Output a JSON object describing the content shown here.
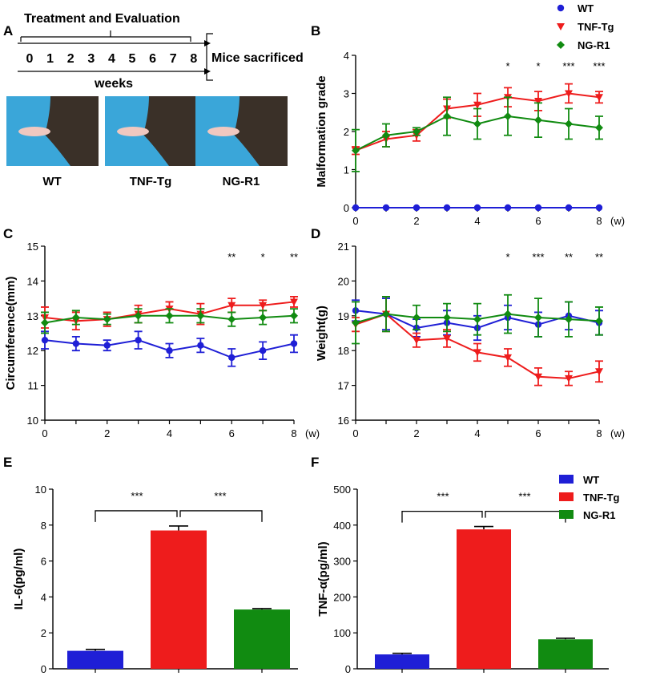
{
  "panel_labels": {
    "A": "A",
    "B": "B",
    "C": "C",
    "D": "D",
    "E": "E",
    "F": "F"
  },
  "colors": {
    "WT": "#1f1fd6",
    "TNF-Tg": "#ee1c1c",
    "NG-R1": "#118b11",
    "bg_photo": "#3aa6d9",
    "fur": "#3a3028",
    "paw": "#f0c8c0"
  },
  "timeline": {
    "title": "Treatment and Evaluation",
    "weeks": [
      "0",
      "1",
      "2",
      "3",
      "4",
      "5",
      "6",
      "7",
      "8"
    ],
    "weeks_label": "weeks",
    "end_label": "Mice sacrificed"
  },
  "photos": {
    "labels": [
      "WT",
      "TNF-Tg",
      "NG-R1"
    ]
  },
  "legend_top": [
    "WT",
    "TNF-Tg",
    "NG-R1"
  ],
  "legend_bottom": [
    "WT",
    "TNF-Tg",
    "NG-R1"
  ],
  "chart_data": [
    {
      "id": "B",
      "type": "line",
      "ylabel": "Malformation grade",
      "xunit": "(w)",
      "x": [
        0,
        1,
        2,
        3,
        4,
        5,
        6,
        7,
        8
      ],
      "xticks": [
        0,
        2,
        4,
        6,
        8
      ],
      "ylim": [
        0,
        4
      ],
      "yticks": [
        0,
        1,
        2,
        3,
        4
      ],
      "series": [
        {
          "name": "WT",
          "values": [
            0,
            0,
            0,
            0,
            0,
            0,
            0,
            0,
            0
          ],
          "err": [
            0,
            0,
            0,
            0,
            0,
            0,
            0,
            0,
            0
          ],
          "marker": "circle"
        },
        {
          "name": "TNF-Tg",
          "values": [
            1.5,
            1.8,
            1.9,
            2.6,
            2.7,
            2.9,
            2.8,
            3.0,
            2.9
          ],
          "err": [
            0.1,
            0.2,
            0.15,
            0.25,
            0.3,
            0.25,
            0.25,
            0.25,
            0.15
          ],
          "marker": "triangle"
        },
        {
          "name": "NG-R1",
          "values": [
            1.5,
            1.9,
            2.0,
            2.4,
            2.2,
            2.4,
            2.3,
            2.2,
            2.1
          ],
          "err": [
            0.55,
            0.3,
            0.1,
            0.5,
            0.4,
            0.5,
            0.45,
            0.4,
            0.3
          ],
          "marker": "diamond"
        }
      ],
      "annotations": [
        {
          "x": 5,
          "text": "*"
        },
        {
          "x": 6,
          "text": "*"
        },
        {
          "x": 7,
          "text": "***"
        },
        {
          "x": 8,
          "text": "***"
        }
      ]
    },
    {
      "id": "C",
      "type": "line",
      "ylabel": "Circumference(mm)",
      "xunit": "(w)",
      "x": [
        0,
        1,
        2,
        3,
        4,
        5,
        6,
        7,
        8
      ],
      "xticks": [
        0,
        2,
        4,
        6,
        8
      ],
      "ylim": [
        10,
        15
      ],
      "yticks": [
        10,
        11,
        12,
        13,
        14,
        15
      ],
      "series": [
        {
          "name": "WT",
          "values": [
            12.3,
            12.2,
            12.15,
            12.3,
            12.0,
            12.15,
            11.8,
            12.0,
            12.2
          ],
          "err": [
            0.25,
            0.2,
            0.15,
            0.25,
            0.2,
            0.2,
            0.25,
            0.25,
            0.25
          ],
          "marker": "circle"
        },
        {
          "name": "TNF-Tg",
          "values": [
            12.95,
            12.85,
            12.9,
            13.05,
            13.2,
            13.05,
            13.3,
            13.3,
            13.4
          ],
          "err": [
            0.3,
            0.25,
            0.2,
            0.25,
            0.2,
            0.3,
            0.2,
            0.15,
            0.15
          ],
          "marker": "triangle"
        },
        {
          "name": "NG-R1",
          "values": [
            12.8,
            12.95,
            12.9,
            13.0,
            13.0,
            13.0,
            12.9,
            12.95,
            13.0
          ],
          "err": [
            0.3,
            0.2,
            0.15,
            0.2,
            0.2,
            0.2,
            0.2,
            0.2,
            0.2
          ],
          "marker": "diamond"
        }
      ],
      "annotations": [
        {
          "x": 6,
          "text": "**"
        },
        {
          "x": 7,
          "text": "*"
        },
        {
          "x": 8,
          "text": "**"
        }
      ]
    },
    {
      "id": "D",
      "type": "line",
      "ylabel": "Weight(g)",
      "xunit": "(w)",
      "x": [
        0,
        1,
        2,
        3,
        4,
        5,
        6,
        7,
        8
      ],
      "xticks": [
        0,
        2,
        4,
        6,
        8
      ],
      "ylim": [
        16,
        21
      ],
      "yticks": [
        16,
        17,
        18,
        19,
        20,
        21
      ],
      "series": [
        {
          "name": "WT",
          "values": [
            19.15,
            19.05,
            18.65,
            18.8,
            18.65,
            18.95,
            18.75,
            19.0,
            18.8
          ],
          "err": [
            0.3,
            0.45,
            0.25,
            0.35,
            0.35,
            0.35,
            0.35,
            0.4,
            0.35
          ],
          "marker": "circle"
        },
        {
          "name": "TNF-Tg",
          "values": [
            18.75,
            19.05,
            18.3,
            18.35,
            17.95,
            17.8,
            17.25,
            17.2,
            17.4
          ],
          "err": [
            0.2,
            0.5,
            0.2,
            0.25,
            0.25,
            0.25,
            0.25,
            0.2,
            0.3
          ],
          "marker": "triangle"
        },
        {
          "name": "NG-R1",
          "values": [
            18.8,
            19.05,
            18.95,
            18.95,
            18.9,
            19.05,
            18.95,
            18.9,
            18.85
          ],
          "err": [
            0.6,
            0.5,
            0.35,
            0.4,
            0.45,
            0.55,
            0.55,
            0.5,
            0.4
          ],
          "marker": "diamond"
        }
      ],
      "annotations": [
        {
          "x": 5,
          "text": "*"
        },
        {
          "x": 6,
          "text": "***"
        },
        {
          "x": 7,
          "text": "**"
        },
        {
          "x": 8,
          "text": "**"
        }
      ]
    },
    {
      "id": "E",
      "type": "bar",
      "ylabel": "IL-6(pg/ml)",
      "categories": [
        "WT",
        "TNF-Tg",
        "NG-R1"
      ],
      "values": [
        1.0,
        7.7,
        3.3
      ],
      "err": [
        0.08,
        0.25,
        0.05
      ],
      "ylim": [
        0,
        10
      ],
      "yticks": [
        0,
        2,
        4,
        6,
        8,
        10
      ],
      "comparisons": [
        {
          "text": "***"
        },
        {
          "text": "***"
        }
      ]
    },
    {
      "id": "F",
      "type": "bar",
      "ylabel": "TNF-α(pg/ml)",
      "categories": [
        "WT",
        "TNF-Tg",
        "NG-R1"
      ],
      "values": [
        40,
        388,
        82
      ],
      "err": [
        3,
        8,
        3
      ],
      "ylim": [
        0,
        500
      ],
      "yticks": [
        0,
        100,
        200,
        300,
        400,
        500
      ],
      "comparisons": [
        {
          "text": "***"
        },
        {
          "text": "***"
        }
      ]
    }
  ]
}
